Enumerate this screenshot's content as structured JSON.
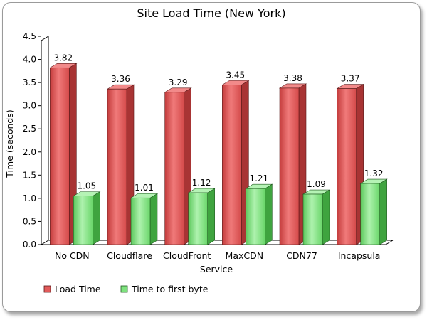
{
  "chart_data": {
    "type": "bar",
    "title": "Site Load Time (New York)",
    "xlabel": "Service",
    "ylabel": "Time (seconds)",
    "ylim": [
      0,
      4.5
    ],
    "yticks": [
      "0.0",
      "0.5",
      "1.0",
      "1.5",
      "2.0",
      "2.5",
      "3.0",
      "3.5",
      "4.0",
      "4.5"
    ],
    "grid": false,
    "legend_position": "bottom-left",
    "categories": [
      "No CDN",
      "Cloudflare",
      "CloudFront",
      "MaxCDN",
      "CDN77",
      "Incapsula"
    ],
    "series": [
      {
        "name": "Load Time",
        "color": "#e25a5a",
        "values": [
          3.82,
          3.36,
          3.29,
          3.45,
          3.38,
          3.37
        ],
        "labels": [
          "3.82",
          "3.36",
          "3.29",
          "3.45",
          "3.38",
          "3.37"
        ]
      },
      {
        "name": "Time to first byte",
        "color": "#7ee27e",
        "values": [
          1.05,
          1.01,
          1.12,
          1.21,
          1.09,
          1.32
        ],
        "labels": [
          "1.05",
          "1.01",
          "1.12",
          "1.21",
          "1.09",
          "1.32"
        ]
      }
    ]
  }
}
